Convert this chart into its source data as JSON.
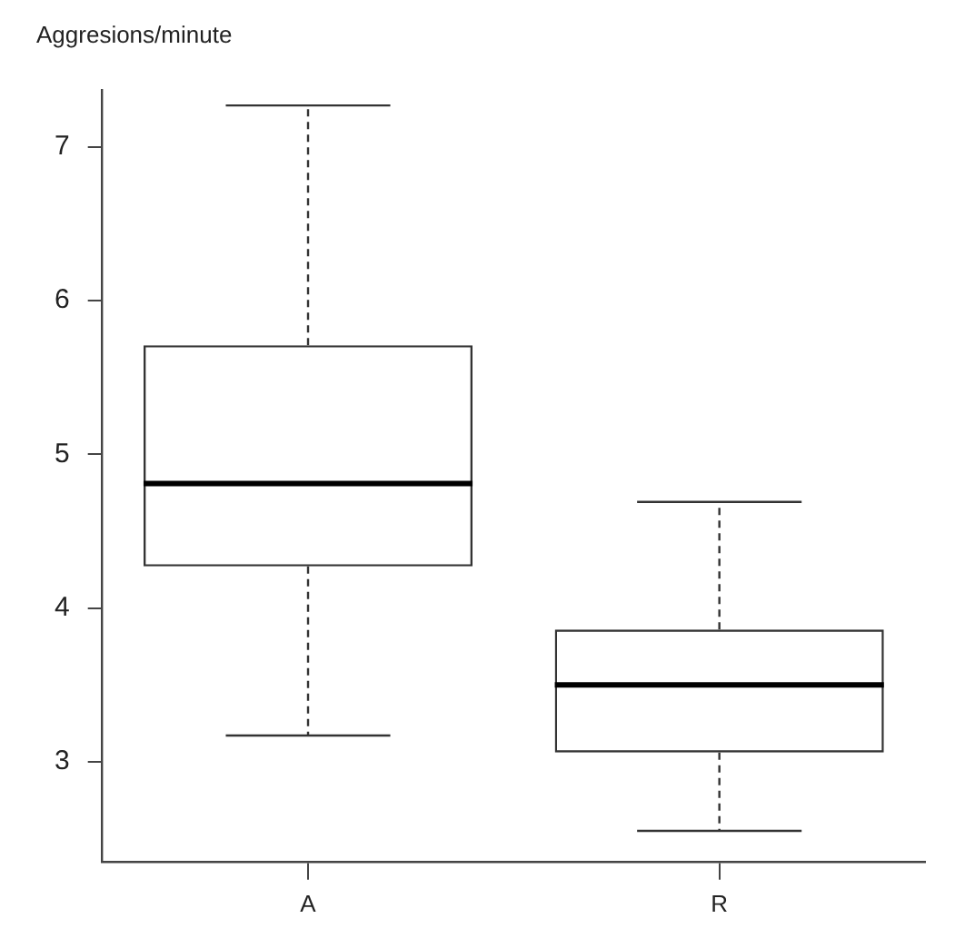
{
  "chart_data": {
    "type": "box",
    "ylabel": "Aggresions/minute",
    "categories": [
      "A",
      "R"
    ],
    "boxes": [
      {
        "low": 3.17,
        "q1": 4.27,
        "median": 4.81,
        "q3": 5.71,
        "high": 7.27
      },
      {
        "low": 2.55,
        "q1": 3.06,
        "median": 3.5,
        "q3": 3.86,
        "high": 4.69
      }
    ],
    "color": "#333333",
    "ylim": [
      2.35,
      7.37
    ],
    "yticks": [
      3,
      4,
      5,
      6,
      7
    ],
    "grid": false
  }
}
